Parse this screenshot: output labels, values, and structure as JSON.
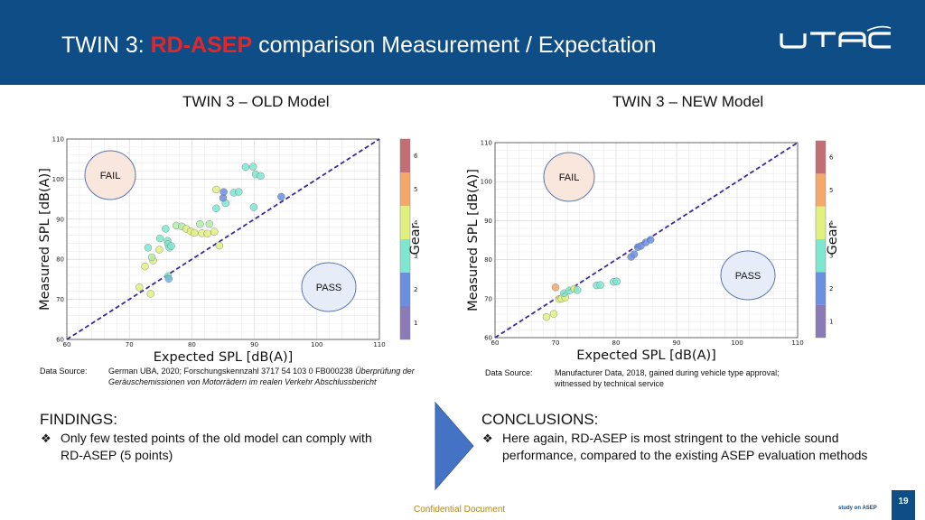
{
  "header": {
    "title_prefix": "TWIN 3: ",
    "title_accent": "RD-ASEP",
    "title_suffix": " comparison Measurement / Expectation",
    "logo_text": "UTAC",
    "bg_color": "#0e4d86",
    "accent_color": "#e3262a"
  },
  "old_model": {
    "title": "TWIN 3 – OLD Model",
    "source_label": "Data Source:",
    "source_line1": "German UBA, 2020; Forschungskennzahl 3717 54 103 0 FB000238 ",
    "source_line1_italic": "Überprüfung der",
    "source_line2": "Geräuschemissionen von Motorrädern im realen Verkehr Abschlussbericht"
  },
  "new_model": {
    "title": "TWIN 3 – NEW Model",
    "source_label": "Data Source:",
    "source_line1": "Manufacturer Data, 2018, gained during vehicle type approval;",
    "source_line2": "witnessed by technical service"
  },
  "chart_data": [
    {
      "type": "scatter",
      "title": "",
      "xlabel": "Expected SPL [dB(A)]",
      "ylabel": "Measured SPL [dB(A)]",
      "xlim": [
        60,
        110
      ],
      "ylim": [
        60,
        110
      ],
      "xticks": [
        "60",
        "70",
        "80",
        "90",
        "100",
        "110"
      ],
      "yticks": [
        "60",
        "70",
        "80",
        "90",
        "100",
        "110"
      ],
      "grid": true,
      "reference_line": "y = x (dashed)",
      "colorbar": {
        "label": "Gear",
        "ticks": [
          "1",
          "2",
          "3",
          "4",
          "5",
          "6"
        ],
        "range": [
          0.5,
          6.5
        ]
      },
      "annotations": [
        "FAIL",
        "PASS"
      ],
      "points": [
        {
          "x": 71.6,
          "y": 73.0,
          "gear": 4
        },
        {
          "x": 73.4,
          "y": 71.4,
          "gear": 4
        },
        {
          "x": 72.5,
          "y": 78.2,
          "gear": 4
        },
        {
          "x": 73.8,
          "y": 79.7,
          "gear": 4
        },
        {
          "x": 73.6,
          "y": 80.5,
          "gear": 3.5
        },
        {
          "x": 73.0,
          "y": 82.9,
          "gear": 3
        },
        {
          "x": 74.8,
          "y": 82.4,
          "gear": 4
        },
        {
          "x": 74.9,
          "y": 85.2,
          "gear": 3
        },
        {
          "x": 75.8,
          "y": 87.6,
          "gear": 3
        },
        {
          "x": 76.1,
          "y": 84.6,
          "gear": 3
        },
        {
          "x": 76.2,
          "y": 83.8,
          "gear": 3
        },
        {
          "x": 76.4,
          "y": 82.9,
          "gear": 3
        },
        {
          "x": 76.7,
          "y": 83.3,
          "gear": 3
        },
        {
          "x": 76.2,
          "y": 75.8,
          "gear": 3
        },
        {
          "x": 76.3,
          "y": 75.1,
          "gear": 2.8
        },
        {
          "x": 77.5,
          "y": 88.4,
          "gear": 3.5
        },
        {
          "x": 78.4,
          "y": 88.2,
          "gear": 3.5
        },
        {
          "x": 79.1,
          "y": 87.6,
          "gear": 4
        },
        {
          "x": 79.8,
          "y": 87.0,
          "gear": 4
        },
        {
          "x": 80.4,
          "y": 86.6,
          "gear": 4
        },
        {
          "x": 81.3,
          "y": 88.8,
          "gear": 3.5
        },
        {
          "x": 81.6,
          "y": 86.5,
          "gear": 4
        },
        {
          "x": 82.5,
          "y": 86.4,
          "gear": 4
        },
        {
          "x": 82.8,
          "y": 88.8,
          "gear": 3.5
        },
        {
          "x": 83.6,
          "y": 86.9,
          "gear": 4
        },
        {
          "x": 84.4,
          "y": 83.4,
          "gear": 4
        },
        {
          "x": 83.9,
          "y": 92.7,
          "gear": 3
        },
        {
          "x": 83.9,
          "y": 97.4,
          "gear": 4
        },
        {
          "x": 85.4,
          "y": 94.0,
          "gear": 3
        },
        {
          "x": 85.0,
          "y": 95.3,
          "gear": 2
        },
        {
          "x": 85.1,
          "y": 96.8,
          "gear": 2
        },
        {
          "x": 86.7,
          "y": 96.6,
          "gear": 3
        },
        {
          "x": 87.5,
          "y": 96.8,
          "gear": 3
        },
        {
          "x": 88.6,
          "y": 103.0,
          "gear": 3
        },
        {
          "x": 89.8,
          "y": 103.1,
          "gear": 3
        },
        {
          "x": 90.2,
          "y": 101.2,
          "gear": 3
        },
        {
          "x": 91.0,
          "y": 100.8,
          "gear": 3
        },
        {
          "x": 89.9,
          "y": 93.0,
          "gear": 3
        },
        {
          "x": 94.3,
          "y": 95.6,
          "gear": 2
        }
      ]
    },
    {
      "type": "scatter",
      "title": "",
      "xlabel": "Expected SPL [dB(A)]",
      "ylabel": "Measured SPL [dB(A)]",
      "xlim": [
        60,
        110
      ],
      "ylim": [
        60,
        110
      ],
      "xticks": [
        "60",
        "70",
        "80",
        "90",
        "100",
        "110"
      ],
      "yticks": [
        "60",
        "70",
        "80",
        "90",
        "100",
        "110"
      ],
      "grid": true,
      "reference_line": "y = x (dashed)",
      "colorbar": {
        "label": "Gear",
        "ticks": [
          "1",
          "2",
          "3",
          "4",
          "5",
          "6"
        ],
        "range": [
          0.5,
          6.5
        ]
      },
      "annotations": [
        "FAIL",
        "PASS"
      ],
      "points": [
        {
          "x": 68.5,
          "y": 65.3,
          "gear": 4
        },
        {
          "x": 69.7,
          "y": 66.1,
          "gear": 4
        },
        {
          "x": 70.0,
          "y": 72.9,
          "gear": 5
        },
        {
          "x": 70.6,
          "y": 69.9,
          "gear": 4
        },
        {
          "x": 71.0,
          "y": 70.0,
          "gear": 4
        },
        {
          "x": 71.6,
          "y": 70.3,
          "gear": 4
        },
        {
          "x": 71.4,
          "y": 71.4,
          "gear": 3
        },
        {
          "x": 72.3,
          "y": 72.1,
          "gear": 3
        },
        {
          "x": 73.1,
          "y": 72.5,
          "gear": 4
        },
        {
          "x": 73.6,
          "y": 72.2,
          "gear": 3
        },
        {
          "x": 76.8,
          "y": 73.4,
          "gear": 3
        },
        {
          "x": 77.4,
          "y": 73.5,
          "gear": 3
        },
        {
          "x": 79.6,
          "y": 74.3,
          "gear": 3
        },
        {
          "x": 80.1,
          "y": 74.4,
          "gear": 3
        },
        {
          "x": 82.5,
          "y": 80.7,
          "gear": 2
        },
        {
          "x": 83.0,
          "y": 81.4,
          "gear": 2
        },
        {
          "x": 83.6,
          "y": 83.2,
          "gear": 2
        },
        {
          "x": 84.1,
          "y": 83.5,
          "gear": 2
        },
        {
          "x": 84.9,
          "y": 84.4,
          "gear": 2
        },
        {
          "x": 85.7,
          "y": 85.1,
          "gear": 2
        }
      ]
    }
  ],
  "findings": {
    "title": "FINDINGS:",
    "bullet": "❖",
    "line1": "Only few tested points of the old model can comply with",
    "line2": "RD-ASEP (5 points)"
  },
  "conclusions": {
    "title": "CONCLUSIONS:",
    "bullet": "❖",
    "line1": "Here again, RD-ASEP is most stringent to the vehicle sound",
    "line2": "performance, compared to the existing ASEP evaluation methods"
  },
  "footer": {
    "confidential": "Confidential Document",
    "study": "study on ASEP",
    "page": "19"
  }
}
